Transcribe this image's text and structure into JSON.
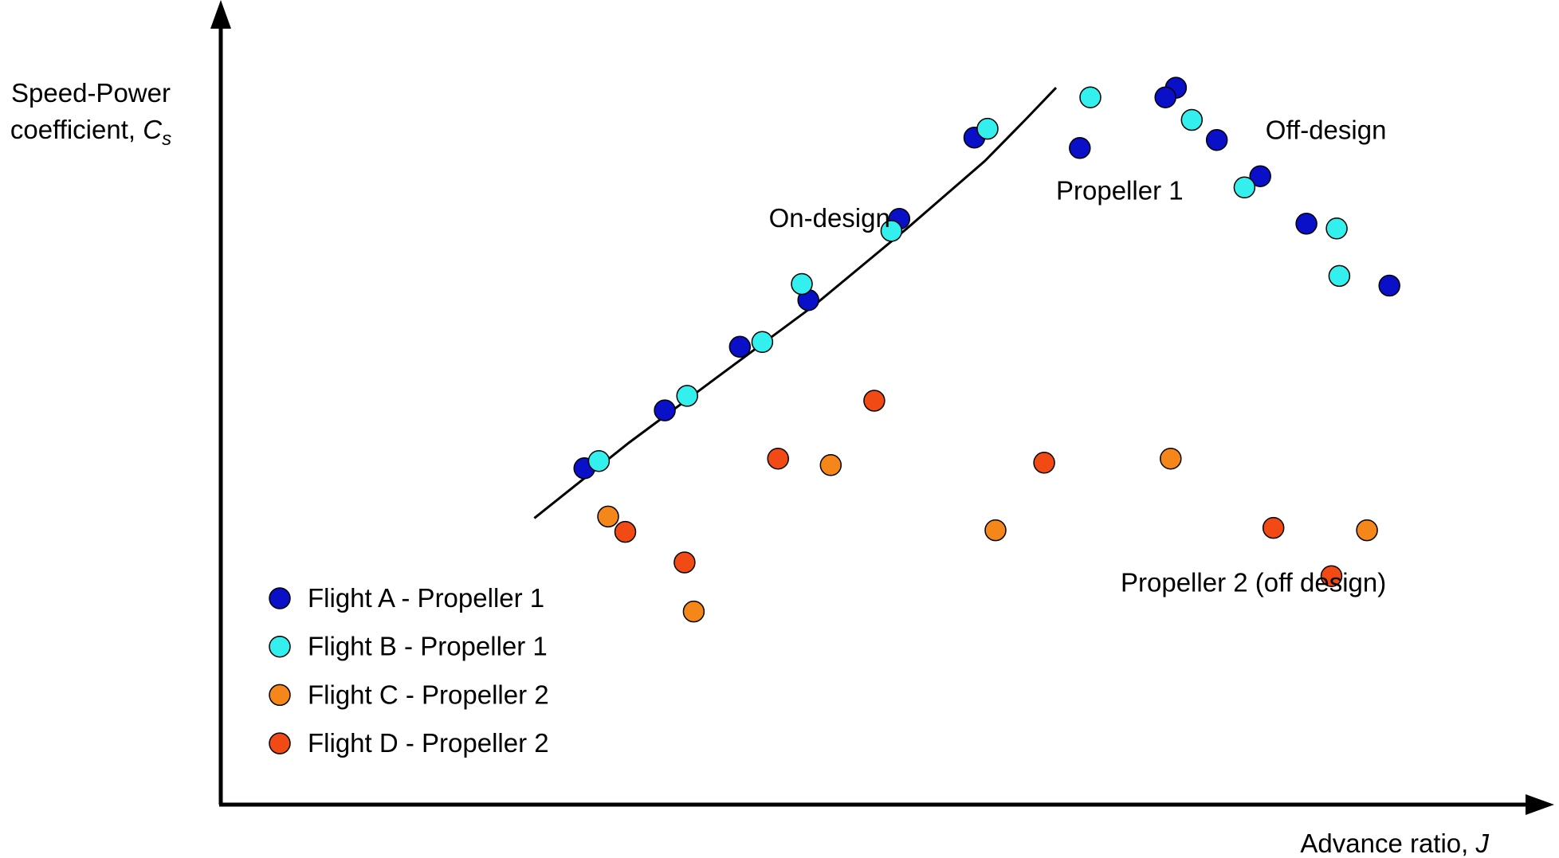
{
  "chart_data": {
    "type": "scatter",
    "title": "",
    "xlabel": {
      "main": "Advance ratio, ",
      "symbol": "J"
    },
    "ylabel": {
      "line1": "Speed-Power",
      "line2": "coefficient, ",
      "symbol": "C",
      "subscript": "s"
    },
    "xlim": [
      0,
      100
    ],
    "ylim": [
      0,
      100
    ],
    "grid": false,
    "ticks": false,
    "legend_position": "bottom-left",
    "series": [
      {
        "name": "Flight A - Propeller 1",
        "color": "#0a10c8",
        "points": [
          [
            27.6,
            41.8
          ],
          [
            33.7,
            49.0
          ],
          [
            39.4,
            56.9
          ],
          [
            44.6,
            62.7
          ],
          [
            51.5,
            72.8
          ],
          [
            57.2,
            82.9
          ],
          [
            72.5,
            89.1
          ],
          [
            65.2,
            81.6
          ],
          [
            71.7,
            87.9
          ],
          [
            75.6,
            82.6
          ],
          [
            78.9,
            78.1
          ],
          [
            82.4,
            72.2
          ],
          [
            88.7,
            64.5
          ]
        ]
      },
      {
        "name": "Flight B - Propeller 1",
        "color": "#33f0ee",
        "points": [
          [
            28.7,
            42.7
          ],
          [
            35.4,
            50.8
          ],
          [
            41.1,
            57.5
          ],
          [
            44.1,
            64.7
          ],
          [
            50.9,
            71.3
          ],
          [
            58.2,
            84.0
          ],
          [
            66.0,
            87.9
          ],
          [
            73.7,
            85.1
          ],
          [
            77.7,
            76.7
          ],
          [
            84.7,
            71.6
          ],
          [
            84.9,
            65.7
          ]
        ]
      },
      {
        "name": "Flight C - Propeller 2",
        "color": "#f5871a",
        "points": [
          [
            29.4,
            35.8
          ],
          [
            35.9,
            24.0
          ],
          [
            46.3,
            42.2
          ],
          [
            58.8,
            34.1
          ],
          [
            72.1,
            43.0
          ],
          [
            87.0,
            34.1
          ]
        ]
      },
      {
        "name": "Flight D - Propeller 2",
        "color": "#f24a14",
        "points": [
          [
            30.7,
            33.9
          ],
          [
            35.2,
            30.1
          ],
          [
            42.3,
            43.0
          ],
          [
            49.6,
            50.2
          ],
          [
            62.5,
            42.5
          ],
          [
            79.9,
            34.4
          ],
          [
            84.3,
            28.4
          ]
        ]
      }
    ],
    "fit_line": {
      "label": "On-design",
      "points": [
        [
          23.8,
          35.6
        ],
        [
          31.0,
          45.0
        ],
        [
          38.0,
          53.5
        ],
        [
          45.0,
          62.0
        ],
        [
          52.0,
          71.5
        ],
        [
          58.0,
          80.0
        ],
        [
          61.0,
          85.0
        ],
        [
          63.4,
          89.1
        ]
      ]
    },
    "annotations": [
      {
        "text": "On-design",
        "x": 41.6,
        "y": 71.8
      },
      {
        "text": "Propeller 1",
        "x": 63.4,
        "y": 75.2
      },
      {
        "text": "Off-design",
        "x": 79.3,
        "y": 82.7
      },
      {
        "text": "Propeller 2 (off design)",
        "x": 68.3,
        "y": 26.5
      }
    ]
  }
}
